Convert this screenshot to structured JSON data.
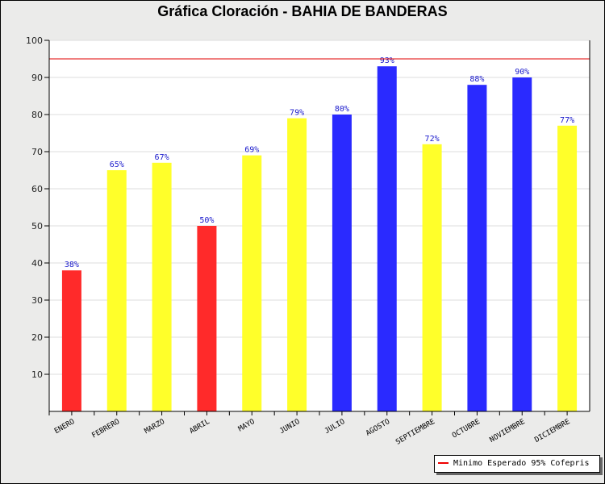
{
  "chart_data": {
    "type": "bar",
    "title": "Gráfica Cloración - BAHIA DE BANDERAS",
    "categories": [
      "ENERO",
      "FEBRERO",
      "MARZO",
      "ABRIL",
      "MAYO",
      "JUNIO",
      "JULIO",
      "AGOSTO",
      "SEPTIEMBRE",
      "OCTUBRE",
      "NOVIEMBRE",
      "DICIEMBRE"
    ],
    "values": [
      38,
      65,
      67,
      50,
      69,
      79,
      80,
      93,
      72,
      88,
      90,
      77
    ],
    "data_labels": [
      "38%",
      "65%",
      "67%",
      "50%",
      "69%",
      "79%",
      "80%",
      "93%",
      "72%",
      "88%",
      "90%",
      "77%"
    ],
    "bar_colors": [
      "#ff2a2a",
      "#ffff2a",
      "#ffff2a",
      "#ff2a2a",
      "#ffff2a",
      "#ffff2a",
      "#2a2aff",
      "#2a2aff",
      "#ffff2a",
      "#2a2aff",
      "#2a2aff",
      "#ffff2a"
    ],
    "ylim": [
      0,
      100
    ],
    "yticks": [
      10,
      20,
      30,
      40,
      50,
      60,
      70,
      80,
      90,
      100
    ],
    "reference_line": {
      "value": 95,
      "label": "Minimo Esperado 95% Cofepris",
      "color": "#e00000"
    },
    "legend_position": "bottom-right",
    "grid": true,
    "xlabel": "",
    "ylabel": ""
  }
}
